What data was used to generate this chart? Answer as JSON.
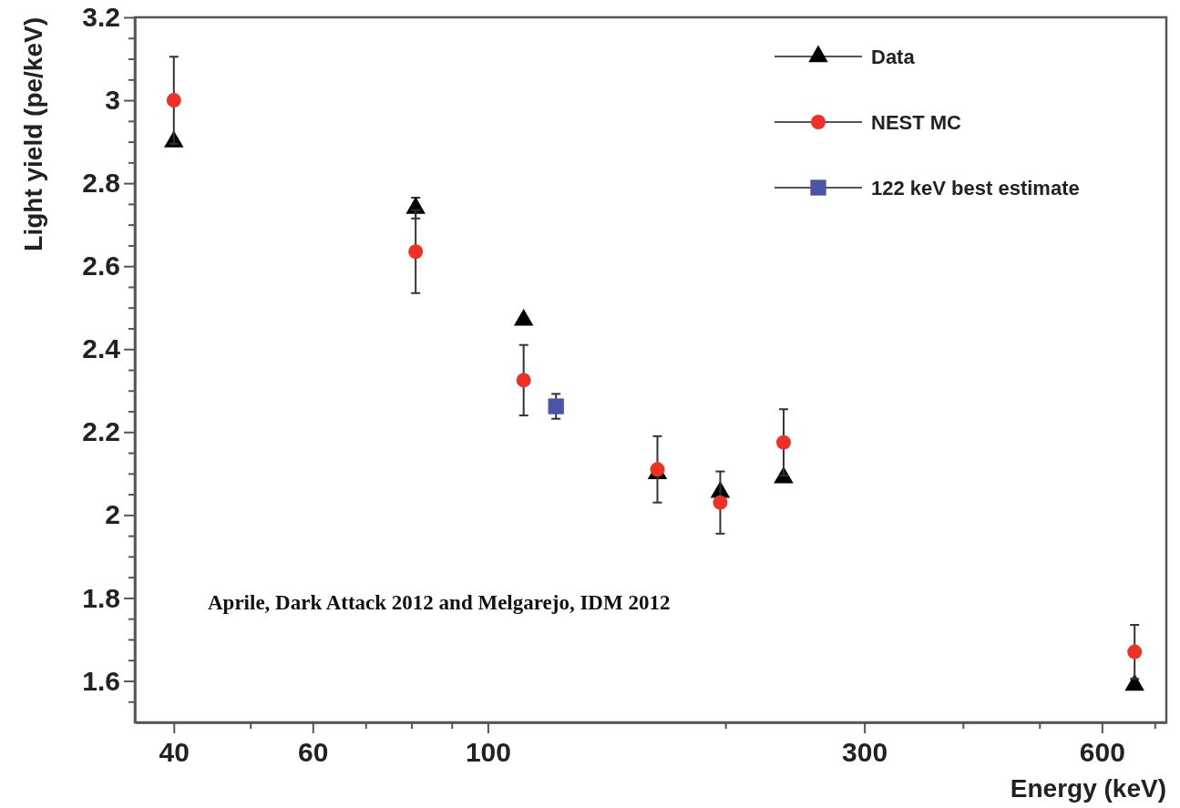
{
  "chart_data": {
    "type": "scatter",
    "xlabel": "Energy (keV)",
    "ylabel": "Light yield (pe/keV)",
    "log": "x",
    "xlim": [
      35.7,
      724
    ],
    "ylim": [
      1.5,
      3.2
    ],
    "xticks": [
      40,
      {
        "value": 50,
        "label": null
      },
      60,
      {
        "value": 70,
        "label": null
      },
      {
        "value": 80,
        "label": null
      },
      {
        "value": 90,
        "label": null
      },
      100,
      {
        "value": 200,
        "label": null
      },
      300,
      {
        "value": 400,
        "label": null
      },
      {
        "value": 500,
        "label": null
      },
      600,
      {
        "value": 700,
        "label": null
      }
    ],
    "yticks": [
      {
        "value": 1.55,
        "label": null
      },
      1.6,
      {
        "value": 1.65,
        "label": null
      },
      {
        "value": 1.7,
        "label": null
      },
      {
        "value": 1.75,
        "label": null
      },
      1.8,
      {
        "value": 1.85,
        "label": null
      },
      {
        "value": 1.9,
        "label": null
      },
      {
        "value": 1.95,
        "label": null
      },
      2,
      {
        "value": 2.05,
        "label": null
      },
      {
        "value": 2.1,
        "label": null
      },
      {
        "value": 2.15,
        "label": null
      },
      2.2,
      {
        "value": 2.25,
        "label": null
      },
      {
        "value": 2.3,
        "label": null
      },
      {
        "value": 2.35,
        "label": null
      },
      2.4,
      {
        "value": 2.45,
        "label": null
      },
      {
        "value": 2.5,
        "label": null
      },
      {
        "value": 2.55,
        "label": null
      },
      2.6,
      {
        "value": 2.65,
        "label": null
      },
      {
        "value": 2.7,
        "label": null
      },
      {
        "value": 2.75,
        "label": null
      },
      2.8,
      {
        "value": 2.85,
        "label": null
      },
      {
        "value": 2.9,
        "label": null
      },
      {
        "value": 2.95,
        "label": null
      },
      3,
      {
        "value": 3.05,
        "label": null
      },
      {
        "value": 3.1,
        "label": null
      },
      {
        "value": 3.15,
        "label": null
      },
      3.2
    ],
    "grid": false,
    "legend": "top right",
    "series": [
      {
        "name": "Data",
        "color": "#000000",
        "marker": "triangle",
        "x": [
          40,
          81,
          111,
          164,
          197,
          237,
          660
        ],
        "values": [
          2.9,
          2.74,
          2.47,
          2.1,
          2.055,
          2.09,
          1.59
        ],
        "errors": [
          null,
          0.025,
          null,
          null,
          null,
          null,
          null
        ]
      },
      {
        "name": "NEST MC",
        "color": "#f03024",
        "marker": "circle",
        "x": [
          40,
          81,
          111,
          164,
          197,
          237,
          660
        ],
        "values": [
          3.0,
          2.635,
          2.325,
          2.11,
          2.03,
          2.175,
          1.67
        ],
        "errors": [
          0.105,
          0.1,
          0.085,
          0.08,
          0.075,
          0.08,
          0.065
        ]
      },
      {
        "name": "122 keV best estimate",
        "color": "#4b55a8",
        "marker": "square",
        "x": [
          122
        ],
        "values": [
          2.262
        ],
        "errors": [
          0.03
        ]
      }
    ],
    "annotations": [
      "Aprile, Dark Attack 2012 and Melgarejo, IDM 2012"
    ]
  }
}
